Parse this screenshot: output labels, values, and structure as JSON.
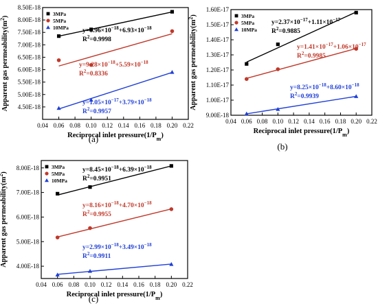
{
  "chart_data": [
    {
      "panel_label": "(a)",
      "type": "scatter",
      "xlabel": "Reciprocal inlet pressure(1/P",
      "xlabel_sub": "m",
      "xlabel_end": ")",
      "ylabel": "Apparent gas permeability(m",
      "ylabel_sup": "2",
      "ylabel_end": ")",
      "xlim": [
        0.04,
        0.22
      ],
      "ylim": [
        4e-18,
        8.5e-18
      ],
      "xticks": [
        0.04,
        0.06,
        0.08,
        0.1,
        0.12,
        0.14,
        0.16,
        0.18,
        0.2,
        0.22
      ],
      "xtick_labels": [
        "0.04",
        "0.06",
        "0.08",
        "0.10",
        "0.12",
        "0.14",
        "0.16",
        "0.18",
        "0.20",
        "0.22"
      ],
      "yticks": [
        4.5e-18,
        5e-18,
        5.5e-18,
        6e-18,
        6.5e-18,
        7e-18,
        7.5e-18,
        8e-18,
        8.5e-18
      ],
      "ytick_labels": [
        "4.50E-18",
        "5.00E-18",
        "5.50E-18",
        "6.00E-18",
        "6.50E-18",
        "7.00E-18",
        "7.50E-18",
        "8.00E-18",
        "8.50E-18"
      ],
      "legend_position": "top-left",
      "series": [
        {
          "name": "3MPa",
          "marker": "square",
          "color": "#000000",
          "x": [
            0.06,
            0.1,
            0.2
          ],
          "y": [
            7.35e-18,
            7.62e-18,
            8.33e-18
          ],
          "fit": {
            "slope": 6.96e-18,
            "intercept": 6.93e-18
          },
          "equation": {
            "prefix": "y=6.96×10",
            "exp1": "−18",
            "mid": "+6.93×10",
            "exp2": "−18"
          },
          "r2": {
            "prefix": "R",
            "sup": "2",
            "rest": "=0.9998"
          }
        },
        {
          "name": "5MPa",
          "marker": "circle",
          "color": "#c0392b",
          "x": [
            0.06,
            0.1,
            0.2
          ],
          "y": [
            6.38e-18,
            6.19e-18,
            7.55e-18
          ],
          "fit": {
            "slope": 9.28e-18,
            "intercept": 5.59e-18
          },
          "equation": {
            "prefix": "y=9.28×10",
            "exp1": "−18",
            "mid": "+5.59×10",
            "exp2": "−18"
          },
          "r2": {
            "prefix": "R",
            "sup": "2",
            "rest": "=0.8336"
          }
        },
        {
          "name": "10MPa",
          "marker": "triangle",
          "color": "#1f3fd6",
          "x": [
            0.06,
            0.1,
            0.2
          ],
          "y": [
            4.45e-18,
            4.78e-18,
            5.9e-18
          ],
          "fit": {
            "slope": 1.05e-17,
            "intercept": 3.79e-18
          },
          "equation": {
            "prefix": "y=1.05×10",
            "exp1": "−17",
            "mid": "+3.79×10",
            "exp2": "−18"
          },
          "r2": {
            "prefix": "R",
            "sup": "2",
            "rest": "=0.9957"
          }
        }
      ]
    },
    {
      "panel_label": "(b)",
      "type": "scatter",
      "xlabel": "Reciprocal inlet pressure(1/P",
      "xlabel_sub": "m",
      "xlabel_end": ")",
      "ylabel": "Apparent gas permeability(m",
      "ylabel_sup": "2",
      "ylabel_end": ")",
      "xlim": [
        0.04,
        0.22
      ],
      "ylim": [
        9e-18,
        1.6e-17
      ],
      "xticks": [
        0.04,
        0.06,
        0.08,
        0.1,
        0.12,
        0.14,
        0.16,
        0.18,
        0.2,
        0.22
      ],
      "xtick_labels": [
        "0.04",
        "0.06",
        "0.08",
        "0.10",
        "0.12",
        "0.14",
        "0.16",
        "0.18",
        "0.20",
        "0.22"
      ],
      "yticks": [
        9e-18,
        1e-17,
        1.1e-17,
        1.2e-17,
        1.3e-17,
        1.4e-17,
        1.5e-17,
        1.6e-17
      ],
      "ytick_labels": [
        "9.00E-18",
        "1.00E-17",
        "1.10E-17",
        "1.20E-17",
        "1.30E-17",
        "1.40E-17",
        "1.50E-17",
        "1.60E-17"
      ],
      "legend_position": "top-left",
      "series": [
        {
          "name": "3MPa",
          "marker": "square",
          "color": "#000000",
          "x": [
            0.06,
            0.1,
            0.2
          ],
          "y": [
            1.24e-17,
            1.37e-17,
            1.58e-17
          ],
          "fit": {
            "slope": 2.37e-17,
            "intercept": 1.11e-17
          },
          "equation": {
            "prefix": "y=2.37×10",
            "exp1": "−17",
            "mid": "+1.11×10",
            "exp2": "−17"
          },
          "r2": {
            "prefix": "R",
            "sup": "2",
            "rest": "=0.9885"
          }
        },
        {
          "name": "5MPa",
          "marker": "circle",
          "color": "#c0392b",
          "x": [
            0.06,
            0.1,
            0.2
          ],
          "y": [
            1.14e-17,
            1.205e-17,
            1.34e-17
          ],
          "fit": {
            "slope": 1.41e-17,
            "intercept": 1.06e-17
          },
          "equation": {
            "prefix": "y=1.41×10",
            "exp1": "−17",
            "mid": "+1.06×10",
            "exp2": "−17"
          },
          "r2": {
            "prefix": "R",
            "sup": "2",
            "rest": "=0.9985"
          }
        },
        {
          "name": "10MPa",
          "marker": "triangle",
          "color": "#1f3fd6",
          "x": [
            0.06,
            0.1,
            0.2
          ],
          "y": [
            9.1e-18,
            9.4e-18,
            1.025e-17
          ],
          "fit": {
            "slope": 8.25e-18,
            "intercept": 8.6e-18
          },
          "equation": {
            "prefix": "y=8.25×10",
            "exp1": "−18",
            "mid": "+8.60×10",
            "exp2": "−18"
          },
          "r2": {
            "prefix": "R",
            "sup": "2",
            "rest": "=0.9939"
          }
        }
      ]
    },
    {
      "panel_label": "(c)",
      "type": "scatter",
      "xlabel": "Reciprocal inlet pressure(1/P",
      "xlabel_sub": "m",
      "xlabel_end": ")",
      "ylabel": "Apparent gas permeability(m",
      "ylabel_sup": "2",
      "ylabel_end": ")",
      "xlim": [
        0.04,
        0.22
      ],
      "ylim": [
        3.5e-18,
        8.3e-18
      ],
      "xticks": [
        0.04,
        0.06,
        0.08,
        0.1,
        0.12,
        0.14,
        0.16,
        0.18,
        0.2,
        0.22
      ],
      "xtick_labels": [
        "0.04",
        "0.06",
        "0.08",
        "0.10",
        "0.12",
        "0.14",
        "0.16",
        "0.18",
        "0.20",
        "0.22"
      ],
      "yticks": [
        4e-18,
        5e-18,
        6e-18,
        7e-18,
        8e-18
      ],
      "ytick_labels": [
        "4.00E-18",
        "5.00E-18",
        "6.00E-18",
        "7.00E-18",
        "8.00E-18"
      ],
      "legend_position": "top-left",
      "series": [
        {
          "name": "3MPa",
          "marker": "square",
          "color": "#000000",
          "x": [
            0.06,
            0.1,
            0.2
          ],
          "y": [
            6.95e-18,
            7.22e-18,
            8.08e-18
          ],
          "fit": {
            "slope": 8.45e-18,
            "intercept": 6.39e-18
          },
          "equation": {
            "prefix": "y=8.45×10",
            "exp1": "−18",
            "mid": "+6.39×10",
            "exp2": "−18"
          },
          "r2": {
            "prefix": "R",
            "sup": "2",
            "rest": "=0.9951"
          }
        },
        {
          "name": "5MPa",
          "marker": "circle",
          "color": "#c0392b",
          "x": [
            0.06,
            0.1,
            0.2
          ],
          "y": [
            5.17e-18,
            5.55e-18,
            6.32e-18
          ],
          "fit": {
            "slope": 8.16e-18,
            "intercept": 4.7e-18
          },
          "equation": {
            "prefix": "y=8.16×10",
            "exp1": "−18",
            "mid": "+4.70×10",
            "exp2": "−18"
          },
          "r2": {
            "prefix": "R",
            "sup": "2",
            "rest": "=0.9955"
          }
        },
        {
          "name": "10MPa",
          "marker": "triangle",
          "color": "#1f3fd6",
          "x": [
            0.06,
            0.1,
            0.2
          ],
          "y": [
            3.65e-18,
            3.8e-18,
            4.08e-18
          ],
          "fit": {
            "slope": 2.99e-18,
            "intercept": 3.49e-18
          },
          "equation": {
            "prefix": "y=2.99×10",
            "exp1": "−18",
            "mid": "+3.49×10",
            "exp2": "−18"
          },
          "r2": {
            "prefix": "R",
            "sup": "2",
            "rest": "=0.9911"
          }
        }
      ]
    }
  ]
}
